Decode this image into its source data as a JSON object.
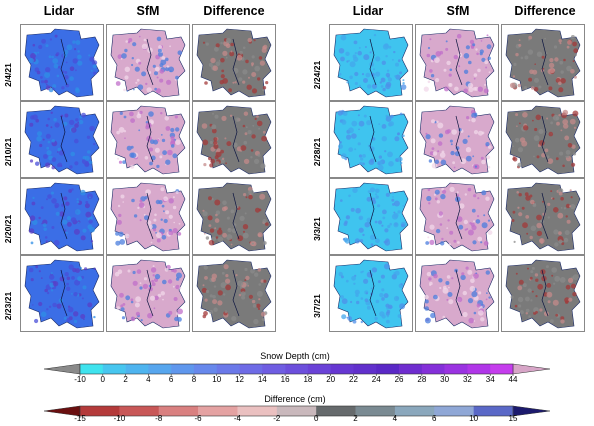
{
  "left_group": {
    "headers": [
      "Lidar",
      "SfM",
      "Difference"
    ],
    "dates": [
      "2/4/21",
      "2/10/21",
      "2/20/21",
      "2/23/21"
    ]
  },
  "right_group": {
    "headers": [
      "Lidar",
      "SfM",
      "Difference"
    ],
    "dates": [
      "2/24/21",
      "2/28/21",
      "3/3/21",
      "3/7/21"
    ]
  },
  "snow_bar": {
    "title": "Snow Depth (cm)",
    "ticks": [
      "-10",
      "0",
      "2",
      "4",
      "6",
      "8",
      "10",
      "12",
      "14",
      "16",
      "18",
      "20",
      "22",
      "24",
      "26",
      "28",
      "30",
      "32",
      "34",
      "44"
    ],
    "colors": [
      "#3fe3ee",
      "#47c6ef",
      "#4eb4ef",
      "#57a6ee",
      "#5f97ed",
      "#6788ec",
      "#6b79e9",
      "#6e6be6",
      "#6f5de2",
      "#6c4fdc",
      "#6a42d7",
      "#6637d2",
      "#6130cc",
      "#5a28c6",
      "#6f2dcf",
      "#8430d9",
      "#9a33e1",
      "#b036e8",
      "#c53ded"
    ],
    "end_left": "#8a8a8a",
    "end_right": "#d7a5c7"
  },
  "diff_bar": {
    "title": "Difference (cm)",
    "ticks": [
      "-15",
      "-10",
      "-8",
      "-6",
      "-4",
      "-2",
      "0",
      "2",
      "4",
      "6",
      "10",
      "15"
    ],
    "colors": [
      "#b43a3a",
      "#c85757",
      "#d98080",
      "#e4a2a2",
      "#eac0c0",
      "#c9b8bc",
      "#666a6c",
      "#7a8a92",
      "#8aa7bc",
      "#8fa7d6",
      "#5a68c7"
    ],
    "end_left": "#6a0f10",
    "end_right": "#1c1a6d"
  }
}
